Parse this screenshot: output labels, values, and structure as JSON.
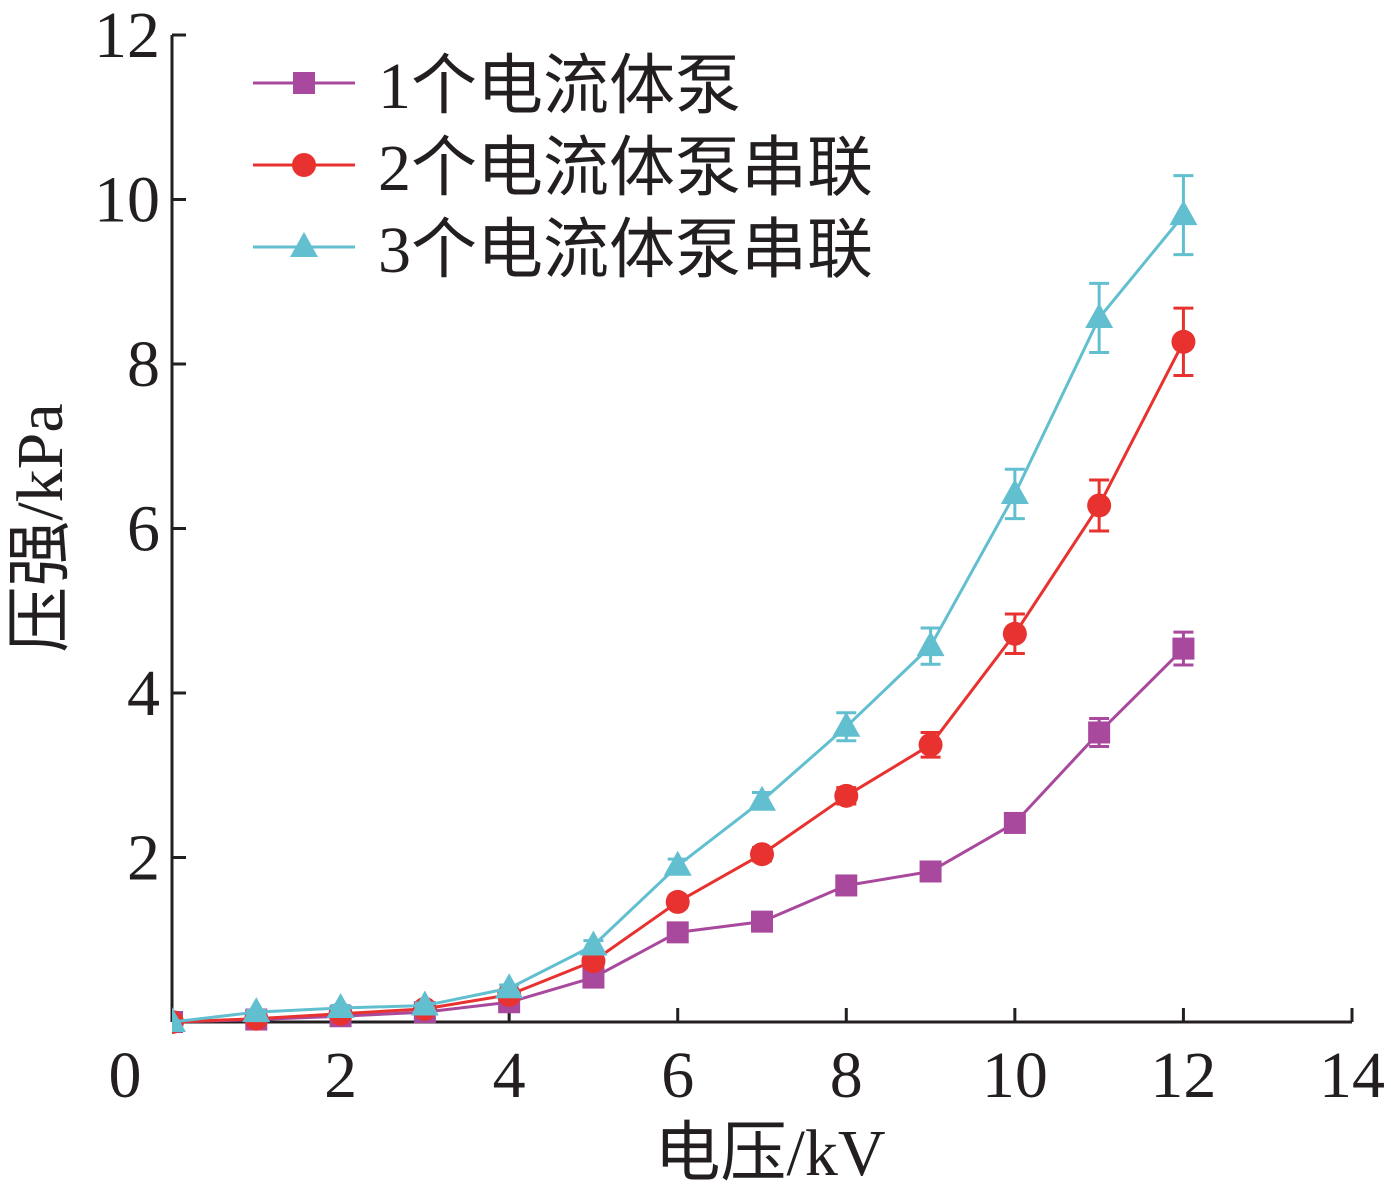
{
  "chart_data": {
    "type": "line",
    "xlabel": "电压/kV",
    "ylabel": "压强/kPa",
    "xlim": [
      0,
      14
    ],
    "ylim": [
      0,
      12
    ],
    "xticks": [
      0,
      2,
      4,
      6,
      8,
      10,
      12,
      14
    ],
    "yticks": [
      2,
      4,
      6,
      8,
      10,
      12
    ],
    "grid": false,
    "legend_position": "top-left",
    "x": [
      0,
      1,
      2,
      3,
      4,
      5,
      6,
      7,
      8,
      9,
      10,
      11,
      12
    ],
    "series": [
      {
        "name": "1个电流体泵",
        "marker": "square",
        "color": "#a9499d",
        "values": [
          0,
          0.03,
          0.07,
          0.12,
          0.24,
          0.54,
          1.09,
          1.22,
          1.66,
          1.83,
          2.42,
          3.52,
          4.54
        ],
        "errors": [
          0,
          0.02,
          0.03,
          0.03,
          0.04,
          0.05,
          0.06,
          0.06,
          0.07,
          0.08,
          0.1,
          0.17,
          0.2
        ]
      },
      {
        "name": "2个电流体泵串联",
        "marker": "circle",
        "color": "#e8322f",
        "values": [
          0,
          0.04,
          0.1,
          0.16,
          0.33,
          0.74,
          1.46,
          2.04,
          2.75,
          3.37,
          4.72,
          6.28,
          8.27
        ],
        "errors": [
          0,
          0.02,
          0.03,
          0.03,
          0.04,
          0.06,
          0.07,
          0.08,
          0.1,
          0.15,
          0.24,
          0.31,
          0.41
        ]
      },
      {
        "name": "3个电流体泵串联",
        "marker": "triangle",
        "color": "#62bfd0",
        "values": [
          0,
          0.12,
          0.17,
          0.2,
          0.41,
          0.93,
          1.9,
          2.69,
          3.59,
          4.57,
          6.42,
          8.56,
          9.81
        ],
        "errors": [
          0,
          0.02,
          0.03,
          0.03,
          0.04,
          0.06,
          0.08,
          0.1,
          0.17,
          0.22,
          0.3,
          0.42,
          0.48
        ]
      }
    ]
  }
}
